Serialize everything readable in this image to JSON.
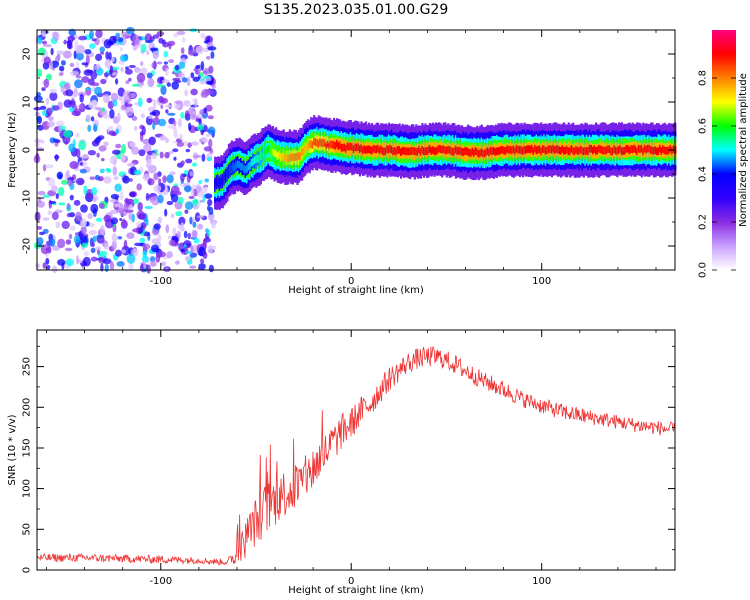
{
  "figure_title": "S135.2023.035.01.00.G29",
  "chart_data": [
    {
      "type": "heatmap",
      "title": "S135.2023.035.01.00.G29",
      "xlabel": "Height of straight line (km)",
      "ylabel": "Frequency (Hz)",
      "xlim": [
        -165,
        170
      ],
      "ylim": [
        -25,
        25
      ],
      "xticks": [
        -100,
        0,
        100
      ],
      "yticks": [
        -20,
        -10,
        0,
        10,
        20
      ],
      "colorbar": {
        "label": "Normalized spectral amplitude",
        "range": [
          0,
          1
        ],
        "ticks": [
          "0.0",
          "0.2",
          "0.4",
          "0.6",
          "0.8"
        ],
        "colormap": [
          "#ffffff",
          "#c9a0ff",
          "#8a2be2",
          "#3000ff",
          "#0000ff",
          "#00ffff",
          "#00ff00",
          "#ffff00",
          "#ff8000",
          "#ff0000",
          "#ff0080"
        ]
      },
      "noise_region": {
        "x": [
          -165,
          -72
        ],
        "note": "scattered low-amplitude spectral content across all frequencies"
      },
      "signal_ridge": {
        "x": [
          -72,
          -68,
          -64,
          -60,
          -56,
          -52,
          -48,
          -44,
          -40,
          -36,
          -32,
          -28,
          -24,
          -20,
          -16,
          -12,
          -8,
          -4,
          0,
          10,
          20,
          30,
          40,
          50,
          60,
          70,
          80,
          90,
          100,
          110,
          120,
          130,
          140,
          150,
          160,
          170
        ],
        "y": [
          -7,
          -6.5,
          -4,
          -3,
          -4,
          -2.5,
          -1.5,
          0,
          -1,
          -1.5,
          -1.5,
          -1.5,
          0.5,
          1.5,
          1.5,
          1,
          1,
          0.5,
          0.5,
          0,
          0,
          -0.5,
          0,
          0,
          -0.5,
          -0.5,
          0,
          0,
          0,
          0,
          0,
          0,
          0,
          0,
          0,
          0
        ],
        "amplitude": [
          0.35,
          0.38,
          0.42,
          0.45,
          0.45,
          0.5,
          0.55,
          0.6,
          0.7,
          0.75,
          0.8,
          0.8,
          0.75,
          0.85,
          0.85,
          0.85,
          0.9,
          0.9,
          0.9,
          0.9,
          0.9,
          0.9,
          0.9,
          0.9,
          0.9,
          0.9,
          0.9,
          0.9,
          0.9,
          0.9,
          0.9,
          0.9,
          0.9,
          0.9,
          0.9,
          0.9
        ]
      }
    },
    {
      "type": "line",
      "xlabel": "Height of straight line (km)",
      "ylabel": "SNR (10 * v/v)",
      "xlim": [
        -165,
        170
      ],
      "ylim": [
        0,
        295
      ],
      "xticks": [
        -100,
        0,
        100
      ],
      "yticks": [
        0,
        50,
        100,
        150,
        200,
        250
      ],
      "color": "#ee3333",
      "series": [
        {
          "x": [
            -165,
            -140,
            -120,
            -100,
            -80,
            -70,
            -65,
            -60,
            -55,
            -50,
            -45,
            -40,
            -35,
            -30,
            -25,
            -20,
            -15,
            -10,
            -5,
            0,
            5,
            10,
            15,
            20,
            25,
            30,
            35,
            40,
            45,
            50,
            55,
            60,
            70,
            80,
            90,
            100,
            110,
            120,
            130,
            140,
            150,
            160,
            170
          ],
          "y": [
            15,
            15,
            14,
            13,
            12,
            10,
            10,
            18,
            40,
            60,
            75,
            85,
            95,
            100,
            110,
            125,
            140,
            155,
            170,
            180,
            195,
            205,
            220,
            235,
            245,
            255,
            260,
            262,
            262,
            258,
            252,
            245,
            232,
            222,
            210,
            202,
            195,
            190,
            186,
            182,
            178,
            175,
            172
          ],
          "noise": [
            5,
            5,
            5,
            5,
            4,
            4,
            4,
            12,
            25,
            30,
            32,
            32,
            30,
            30,
            28,
            28,
            25,
            25,
            22,
            20,
            18,
            18,
            16,
            15,
            14,
            13,
            13,
            13,
            13,
            12,
            12,
            12,
            11,
            11,
            10,
            10,
            10,
            10,
            9,
            9,
            9,
            9,
            9
          ]
        }
      ]
    }
  ]
}
